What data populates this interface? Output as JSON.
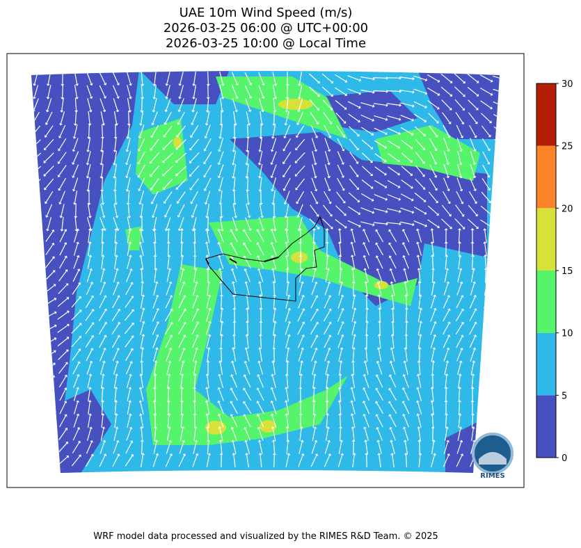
{
  "title": [
    "UAE 10m Wind Speed (m/s)",
    "2026-03-25 06:00 @ UTC+00:00",
    "2026-03-25 10:00 @ Local Time"
  ],
  "colorbar": {
    "lim": [
      0,
      30
    ],
    "ticks": [
      0,
      5,
      10,
      15,
      20,
      25,
      30
    ],
    "colors": [
      "#4650be",
      "#2fb9e9",
      "#55f46a",
      "#d6e13a",
      "#fc8328",
      "#b31f06"
    ]
  },
  "logo": "RIMES",
  "footer": "WRF model data processed and visualized by the RIMES R&D Team. © 2025"
}
